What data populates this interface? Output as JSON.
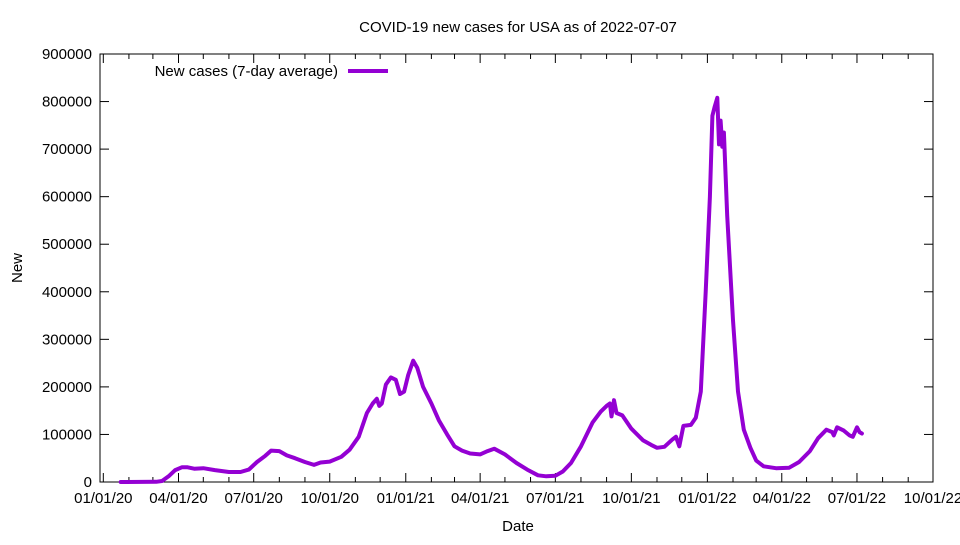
{
  "chart_data": {
    "type": "line",
    "title": "COVID-19 new cases for USA as of 2022-07-07",
    "xlabel": "Date",
    "ylabel": "New",
    "xlim": [
      "2019-12-28",
      "2022-10-01"
    ],
    "ylim": [
      0,
      900000
    ],
    "grid": false,
    "legend_placement": "top-left",
    "x_ticks": [
      {
        "date": "2020-01-01",
        "label": "01/01/20"
      },
      {
        "date": "2020-04-01",
        "label": "04/01/20"
      },
      {
        "date": "2020-07-01",
        "label": "07/01/20"
      },
      {
        "date": "2020-10-01",
        "label": "10/01/20"
      },
      {
        "date": "2021-01-01",
        "label": "01/01/21"
      },
      {
        "date": "2021-04-01",
        "label": "04/01/21"
      },
      {
        "date": "2021-07-01",
        "label": "07/01/21"
      },
      {
        "date": "2021-10-01",
        "label": "10/01/21"
      },
      {
        "date": "2022-01-01",
        "label": "01/01/22"
      },
      {
        "date": "2022-04-01",
        "label": "04/01/22"
      },
      {
        "date": "2022-07-01",
        "label": "07/01/22"
      },
      {
        "date": "2022-10-01",
        "label": "10/01/22"
      }
    ],
    "y_ticks": [
      {
        "value": 0,
        "label": "0"
      },
      {
        "value": 100000,
        "label": "100000"
      },
      {
        "value": 200000,
        "label": "200000"
      },
      {
        "value": 300000,
        "label": "300000"
      },
      {
        "value": 400000,
        "label": "400000"
      },
      {
        "value": 500000,
        "label": "500000"
      },
      {
        "value": 600000,
        "label": "600000"
      },
      {
        "value": 700000,
        "label": "700000"
      },
      {
        "value": 800000,
        "label": "800000"
      },
      {
        "value": 900000,
        "label": "900000"
      }
    ],
    "series": [
      {
        "name": "New cases (7-day average)",
        "color": "#9400d3",
        "points": [
          [
            "2020-01-22",
            0
          ],
          [
            "2020-03-05",
            500
          ],
          [
            "2020-03-12",
            2000
          ],
          [
            "2020-03-20",
            12000
          ],
          [
            "2020-03-28",
            25000
          ],
          [
            "2020-04-05",
            31000
          ],
          [
            "2020-04-12",
            31000
          ],
          [
            "2020-04-20",
            28000
          ],
          [
            "2020-05-01",
            29000
          ],
          [
            "2020-05-15",
            25000
          ],
          [
            "2020-06-01",
            21000
          ],
          [
            "2020-06-15",
            21000
          ],
          [
            "2020-06-25",
            26000
          ],
          [
            "2020-07-05",
            42000
          ],
          [
            "2020-07-15",
            55000
          ],
          [
            "2020-07-22",
            66000
          ],
          [
            "2020-08-01",
            65000
          ],
          [
            "2020-08-10",
            56000
          ],
          [
            "2020-08-20",
            50000
          ],
          [
            "2020-09-01",
            42000
          ],
          [
            "2020-09-12",
            36000
          ],
          [
            "2020-09-20",
            41000
          ],
          [
            "2020-10-01",
            43000
          ],
          [
            "2020-10-15",
            53000
          ],
          [
            "2020-10-25",
            68000
          ],
          [
            "2020-11-05",
            95000
          ],
          [
            "2020-11-15",
            145000
          ],
          [
            "2020-11-22",
            165000
          ],
          [
            "2020-11-27",
            175000
          ],
          [
            "2020-11-30",
            160000
          ],
          [
            "2020-12-03",
            165000
          ],
          [
            "2020-12-08",
            205000
          ],
          [
            "2020-12-14",
            220000
          ],
          [
            "2020-12-20",
            215000
          ],
          [
            "2020-12-25",
            185000
          ],
          [
            "2020-12-30",
            190000
          ],
          [
            "2021-01-04",
            225000
          ],
          [
            "2021-01-10",
            255000
          ],
          [
            "2021-01-15",
            240000
          ],
          [
            "2021-01-22",
            200000
          ],
          [
            "2021-02-01",
            165000
          ],
          [
            "2021-02-10",
            130000
          ],
          [
            "2021-02-20",
            100000
          ],
          [
            "2021-03-01",
            75000
          ],
          [
            "2021-03-10",
            66000
          ],
          [
            "2021-03-20",
            60000
          ],
          [
            "2021-04-01",
            58000
          ],
          [
            "2021-04-10",
            65000
          ],
          [
            "2021-04-18",
            70000
          ],
          [
            "2021-05-01",
            58000
          ],
          [
            "2021-05-15",
            40000
          ],
          [
            "2021-05-28",
            26000
          ],
          [
            "2021-06-10",
            14000
          ],
          [
            "2021-06-20",
            12000
          ],
          [
            "2021-07-01",
            13000
          ],
          [
            "2021-07-10",
            22000
          ],
          [
            "2021-07-20",
            40000
          ],
          [
            "2021-08-01",
            75000
          ],
          [
            "2021-08-15",
            125000
          ],
          [
            "2021-08-25",
            148000
          ],
          [
            "2021-09-01",
            160000
          ],
          [
            "2021-09-05",
            165000
          ],
          [
            "2021-09-07",
            138000
          ],
          [
            "2021-09-10",
            172000
          ],
          [
            "2021-09-13",
            145000
          ],
          [
            "2021-09-20",
            140000
          ],
          [
            "2021-10-01",
            112000
          ],
          [
            "2021-10-15",
            88000
          ],
          [
            "2021-10-25",
            78000
          ],
          [
            "2021-11-01",
            72000
          ],
          [
            "2021-11-10",
            74000
          ],
          [
            "2021-11-20",
            90000
          ],
          [
            "2021-11-24",
            95000
          ],
          [
            "2021-11-28",
            75000
          ],
          [
            "2021-12-03",
            118000
          ],
          [
            "2021-12-12",
            120000
          ],
          [
            "2021-12-18",
            135000
          ],
          [
            "2021-12-24",
            190000
          ],
          [
            "2021-12-30",
            400000
          ],
          [
            "2022-01-04",
            600000
          ],
          [
            "2022-01-07",
            770000
          ],
          [
            "2022-01-10",
            790000
          ],
          [
            "2022-01-13",
            808000
          ],
          [
            "2022-01-15",
            710000
          ],
          [
            "2022-01-17",
            760000
          ],
          [
            "2022-01-19",
            705000
          ],
          [
            "2022-01-21",
            735000
          ],
          [
            "2022-01-25",
            560000
          ],
          [
            "2022-02-01",
            340000
          ],
          [
            "2022-02-07",
            190000
          ],
          [
            "2022-02-14",
            110000
          ],
          [
            "2022-02-22",
            72000
          ],
          [
            "2022-03-01",
            45000
          ],
          [
            "2022-03-10",
            33000
          ],
          [
            "2022-03-25",
            29000
          ],
          [
            "2022-04-10",
            30000
          ],
          [
            "2022-04-22",
            42000
          ],
          [
            "2022-05-05",
            65000
          ],
          [
            "2022-05-15",
            92000
          ],
          [
            "2022-05-25",
            110000
          ],
          [
            "2022-06-01",
            105000
          ],
          [
            "2022-06-03",
            98000
          ],
          [
            "2022-06-07",
            115000
          ],
          [
            "2022-06-15",
            108000
          ],
          [
            "2022-06-22",
            98000
          ],
          [
            "2022-06-26",
            95000
          ],
          [
            "2022-07-01",
            115000
          ],
          [
            "2022-07-04",
            105000
          ],
          [
            "2022-07-07",
            102000
          ]
        ]
      }
    ]
  }
}
